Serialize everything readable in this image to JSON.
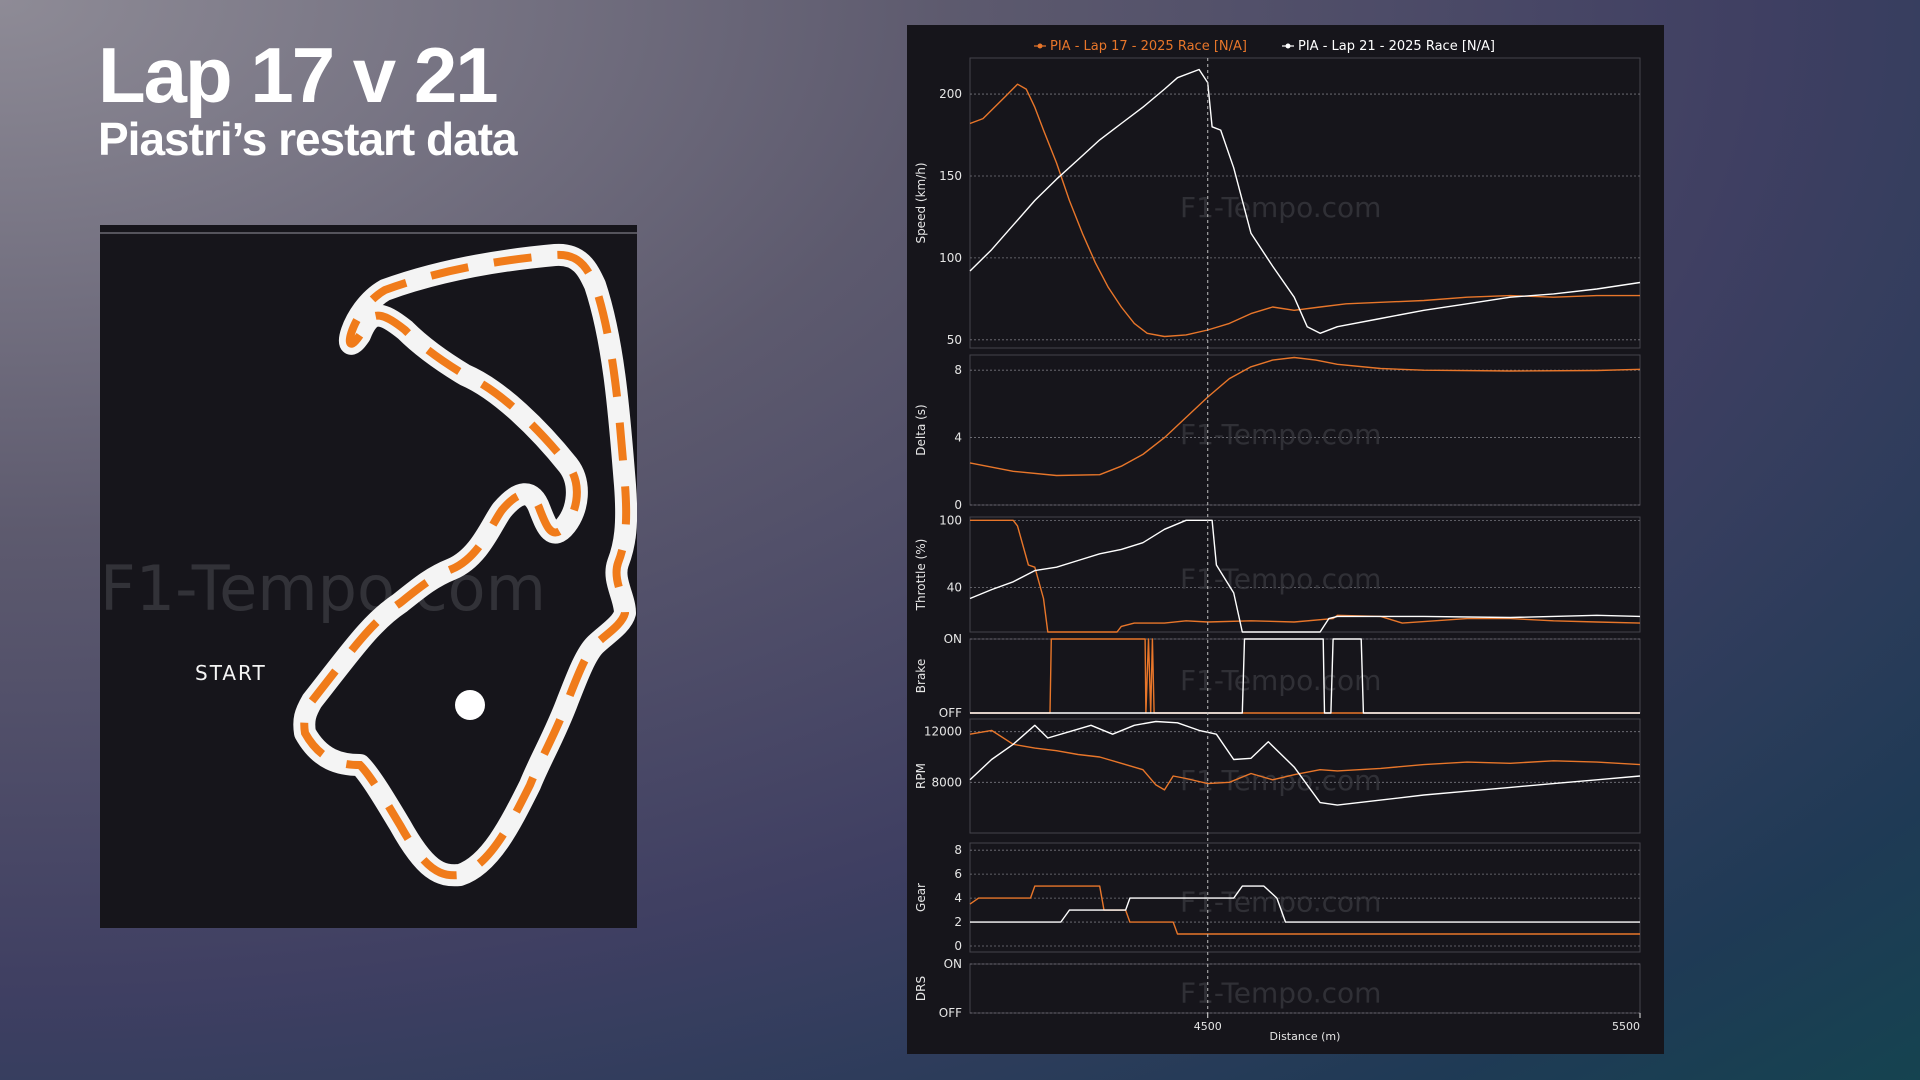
{
  "slide": {
    "title": "Lap 17 v 21",
    "subtitle": "Piastri’s restart data"
  },
  "track_map": {
    "start_label": "START",
    "watermark": "F1-Tempo.com",
    "track_color": "#f4f4f4",
    "highlight_color": "#f07b1a",
    "background": "#16151b"
  },
  "chart_data": {
    "type": "line",
    "watermark": "F1-Tempo.com",
    "xlabel": "Distance (m)",
    "xlim": [
      3950,
      5500
    ],
    "x_tick_labels": [
      "4500",
      "5500"
    ],
    "x_ticks": [
      4500,
      5500
    ],
    "cursor_x": 4500,
    "legend": {
      "placement": "top-center"
    },
    "series": [
      {
        "name": "PIA - Lap 17 - 2025 Race [N/A]",
        "color": "#e8762a"
      },
      {
        "name": "PIA - Lap 21 - 2025 Race [N/A]",
        "color": "#ffffff"
      }
    ],
    "panels": [
      {
        "id": "speed",
        "ylabel": "Speed (km/h)",
        "ylim": [
          45,
          222
        ],
        "ticks": [
          50,
          100,
          150,
          200
        ],
        "tick_labels": [
          "50",
          "100",
          "150",
          "200"
        ],
        "lap17": [
          [
            3950,
            182
          ],
          [
            3980,
            185
          ],
          [
            4030,
            198
          ],
          [
            4060,
            206
          ],
          [
            4080,
            203
          ],
          [
            4100,
            192
          ],
          [
            4120,
            178
          ],
          [
            4150,
            158
          ],
          [
            4180,
            135
          ],
          [
            4210,
            115
          ],
          [
            4240,
            97
          ],
          [
            4270,
            82
          ],
          [
            4300,
            70
          ],
          [
            4330,
            60
          ],
          [
            4360,
            54
          ],
          [
            4400,
            52
          ],
          [
            4450,
            53
          ],
          [
            4500,
            56
          ],
          [
            4550,
            60
          ],
          [
            4600,
            66
          ],
          [
            4650,
            70
          ],
          [
            4700,
            68
          ],
          [
            4760,
            70
          ],
          [
            4820,
            72
          ],
          [
            5000,
            74
          ],
          [
            5100,
            76
          ],
          [
            5200,
            77
          ],
          [
            5300,
            76
          ],
          [
            5400,
            77
          ],
          [
            5500,
            77
          ]
        ],
        "lap21": [
          [
            3950,
            92
          ],
          [
            4000,
            105
          ],
          [
            4050,
            120
          ],
          [
            4100,
            135
          ],
          [
            4150,
            148
          ],
          [
            4200,
            160
          ],
          [
            4250,
            172
          ],
          [
            4300,
            182
          ],
          [
            4350,
            192
          ],
          [
            4400,
            203
          ],
          [
            4430,
            210
          ],
          [
            4480,
            215
          ],
          [
            4500,
            207
          ],
          [
            4510,
            180
          ],
          [
            4530,
            178
          ],
          [
            4560,
            155
          ],
          [
            4600,
            115
          ],
          [
            4650,
            95
          ],
          [
            4700,
            76
          ],
          [
            4730,
            58
          ],
          [
            4760,
            54
          ],
          [
            4800,
            58
          ],
          [
            4900,
            63
          ],
          [
            5000,
            68
          ],
          [
            5100,
            72
          ],
          [
            5200,
            76
          ],
          [
            5300,
            78
          ],
          [
            5400,
            81
          ],
          [
            5500,
            85
          ]
        ]
      },
      {
        "id": "delta",
        "ylabel": "Delta (s)",
        "ylim": [
          0,
          8.9
        ],
        "ticks": [
          0,
          4,
          8
        ],
        "tick_labels": [
          "0",
          "4",
          "8"
        ],
        "lap17": [
          [
            3950,
            2.5
          ],
          [
            4050,
            2.0
          ],
          [
            4150,
            1.75
          ],
          [
            4250,
            1.8
          ],
          [
            4300,
            2.3
          ],
          [
            4350,
            3.0
          ],
          [
            4400,
            4.0
          ],
          [
            4450,
            5.2
          ],
          [
            4500,
            6.4
          ],
          [
            4550,
            7.5
          ],
          [
            4600,
            8.2
          ],
          [
            4650,
            8.6
          ],
          [
            4700,
            8.75
          ],
          [
            4750,
            8.6
          ],
          [
            4800,
            8.35
          ],
          [
            4900,
            8.1
          ],
          [
            5000,
            8.0
          ],
          [
            5200,
            7.95
          ],
          [
            5400,
            7.98
          ],
          [
            5500,
            8.05
          ]
        ]
      },
      {
        "id": "throttle",
        "ylabel": "Throttle (%)",
        "ylim": [
          0,
          103
        ],
        "ticks": [
          40,
          100
        ],
        "tick_labels": [
          "40",
          "100"
        ],
        "lap17": [
          [
            3950,
            100
          ],
          [
            4050,
            100
          ],
          [
            4060,
            95
          ],
          [
            4085,
            60
          ],
          [
            4100,
            58
          ],
          [
            4120,
            30
          ],
          [
            4130,
            0
          ],
          [
            4200,
            0
          ],
          [
            4290,
            0
          ],
          [
            4300,
            5
          ],
          [
            4330,
            8
          ],
          [
            4400,
            8
          ],
          [
            4450,
            10
          ],
          [
            4500,
            9
          ],
          [
            4600,
            10
          ],
          [
            4700,
            9
          ],
          [
            4790,
            12
          ],
          [
            4800,
            15
          ],
          [
            4900,
            14
          ],
          [
            4950,
            8
          ],
          [
            5100,
            12
          ],
          [
            5200,
            12
          ],
          [
            5300,
            10
          ],
          [
            5400,
            9
          ],
          [
            5500,
            8
          ]
        ],
        "lap21": [
          [
            3950,
            30
          ],
          [
            4000,
            38
          ],
          [
            4050,
            45
          ],
          [
            4100,
            55
          ],
          [
            4150,
            58
          ],
          [
            4200,
            64
          ],
          [
            4250,
            70
          ],
          [
            4300,
            74
          ],
          [
            4350,
            80
          ],
          [
            4400,
            92
          ],
          [
            4450,
            100
          ],
          [
            4500,
            100
          ],
          [
            4510,
            100
          ],
          [
            4520,
            60
          ],
          [
            4560,
            35
          ],
          [
            4580,
            0
          ],
          [
            4700,
            0
          ],
          [
            4760,
            0
          ],
          [
            4780,
            12
          ],
          [
            4800,
            14
          ],
          [
            5000,
            14
          ],
          [
            5200,
            13
          ],
          [
            5400,
            15
          ],
          [
            5500,
            14
          ]
        ]
      },
      {
        "id": "brake",
        "ylabel": "Brake",
        "ylim": [
          0,
          1
        ],
        "ticks": [
          0,
          1
        ],
        "tick_labels": [
          "OFF",
          "ON"
        ],
        "lap17": [
          [
            3950,
            0
          ],
          [
            4135,
            0
          ],
          [
            4138,
            1
          ],
          [
            4355,
            1
          ],
          [
            4357,
            0
          ],
          [
            4363,
            1
          ],
          [
            4368,
            0
          ],
          [
            4372,
            1
          ],
          [
            4376,
            0
          ],
          [
            5500,
            0
          ]
        ],
        "lap21": [
          [
            3950,
            0
          ],
          [
            4580,
            0
          ],
          [
            4585,
            1
          ],
          [
            4767,
            1
          ],
          [
            4770,
            0
          ],
          [
            4785,
            0
          ],
          [
            4790,
            1
          ],
          [
            4855,
            1
          ],
          [
            4860,
            0
          ],
          [
            5500,
            0
          ]
        ]
      },
      {
        "id": "rpm",
        "ylabel": "RPM",
        "ylim": [
          4000,
          13000
        ],
        "ticks": [
          8000,
          12000
        ],
        "tick_labels": [
          "8000",
          "12000"
        ],
        "lap17": [
          [
            3950,
            11800
          ],
          [
            4000,
            12100
          ],
          [
            4050,
            11000
          ],
          [
            4100,
            10700
          ],
          [
            4150,
            10500
          ],
          [
            4200,
            10200
          ],
          [
            4250,
            10000
          ],
          [
            4300,
            9500
          ],
          [
            4350,
            9000
          ],
          [
            4380,
            7800
          ],
          [
            4400,
            7400
          ],
          [
            4420,
            8500
          ],
          [
            4450,
            8300
          ],
          [
            4500,
            7900
          ],
          [
            4550,
            8000
          ],
          [
            4600,
            8700
          ],
          [
            4650,
            8200
          ],
          [
            4700,
            8600
          ],
          [
            4760,
            9000
          ],
          [
            4800,
            8900
          ],
          [
            4900,
            9100
          ],
          [
            5000,
            9400
          ],
          [
            5100,
            9600
          ],
          [
            5200,
            9500
          ],
          [
            5300,
            9700
          ],
          [
            5400,
            9600
          ],
          [
            5500,
            9400
          ]
        ],
        "lap21": [
          [
            3950,
            8200
          ],
          [
            4000,
            9800
          ],
          [
            4050,
            11000
          ],
          [
            4100,
            12500
          ],
          [
            4130,
            11500
          ],
          [
            4180,
            12000
          ],
          [
            4230,
            12500
          ],
          [
            4280,
            11800
          ],
          [
            4330,
            12500
          ],
          [
            4380,
            12800
          ],
          [
            4430,
            12700
          ],
          [
            4480,
            12100
          ],
          [
            4520,
            11800
          ],
          [
            4560,
            9800
          ],
          [
            4600,
            9900
          ],
          [
            4640,
            11200
          ],
          [
            4700,
            9200
          ],
          [
            4760,
            6400
          ],
          [
            4800,
            6200
          ],
          [
            4900,
            6600
          ],
          [
            5000,
            7000
          ],
          [
            5100,
            7300
          ],
          [
            5200,
            7600
          ],
          [
            5300,
            7900
          ],
          [
            5400,
            8200
          ],
          [
            5500,
            8500
          ]
        ]
      },
      {
        "id": "gear",
        "ylabel": "Gear",
        "ylim": [
          -0.5,
          8.6
        ],
        "ticks": [
          0,
          2,
          4,
          6,
          8
        ],
        "tick_labels": [
          "0",
          "2",
          "4",
          "6",
          "8"
        ],
        "lap17": [
          [
            3950,
            3.5
          ],
          [
            3970,
            4
          ],
          [
            4090,
            4
          ],
          [
            4100,
            5
          ],
          [
            4250,
            5
          ],
          [
            4260,
            3
          ],
          [
            4310,
            3
          ],
          [
            4320,
            2
          ],
          [
            4420,
            2
          ],
          [
            4430,
            1
          ],
          [
            5500,
            1
          ]
        ],
        "lap21": [
          [
            3950,
            2
          ],
          [
            4160,
            2
          ],
          [
            4180,
            3
          ],
          [
            4300,
            3
          ],
          [
            4310,
            3
          ],
          [
            4320,
            4
          ],
          [
            4560,
            4
          ],
          [
            4580,
            5
          ],
          [
            4630,
            5
          ],
          [
            4660,
            4
          ],
          [
            4680,
            2
          ],
          [
            5500,
            2
          ]
        ]
      },
      {
        "id": "drs",
        "ylabel": "DRS",
        "ylim": [
          0,
          1
        ],
        "ticks": [
          0,
          1
        ],
        "tick_labels": [
          "OFF",
          "ON"
        ]
      }
    ]
  }
}
